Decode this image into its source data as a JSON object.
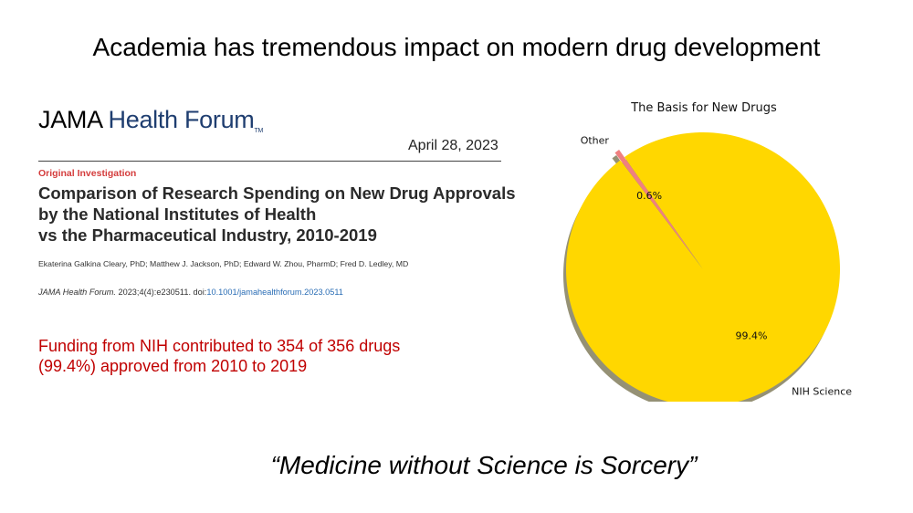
{
  "slide": {
    "title": "Academia has tremendous impact on modern drug development",
    "quote": "“Medicine without Science is Sorcery”"
  },
  "article": {
    "journal_name_part1": "JAMA",
    "journal_name_part2": "Health Forum",
    "journal_trademark": "TM",
    "date": "April 28, 2023",
    "category": "Original Investigation",
    "title_lines": [
      "Comparison of Research Spending on New Drug Approvals",
      "by the National Institutes of Health",
      "vs the Pharmaceutical Industry, 2010-2019"
    ],
    "authors": "Ekaterina Galkina Cleary, PhD; Matthew J. Jackson, PhD; Edward W. Zhou, PharmD; Fred D. Ledley, MD",
    "citation_journal": "JAMA Health Forum.",
    "citation_details": " 2023;4(4):e230511. doi:",
    "citation_doi": "10.1001/jamahealthforum.2023.0511"
  },
  "funding_note": {
    "line1": "Funding from NIH contributed to 354 of 356 drugs",
    "line2": "(99.4%) approved from 2010 to 2019"
  },
  "chart_data": {
    "type": "pie",
    "title": "The Basis for New Drugs",
    "slices": [
      {
        "label": "Other",
        "value": 0.6,
        "value_label": "0.6%",
        "color": "#f08080",
        "exploded": true
      },
      {
        "label": "NIH Science",
        "value": 99.4,
        "value_label": "99.4%",
        "color": "#ffd700",
        "exploded": false
      }
    ],
    "shadow": true,
    "legend": "none"
  }
}
